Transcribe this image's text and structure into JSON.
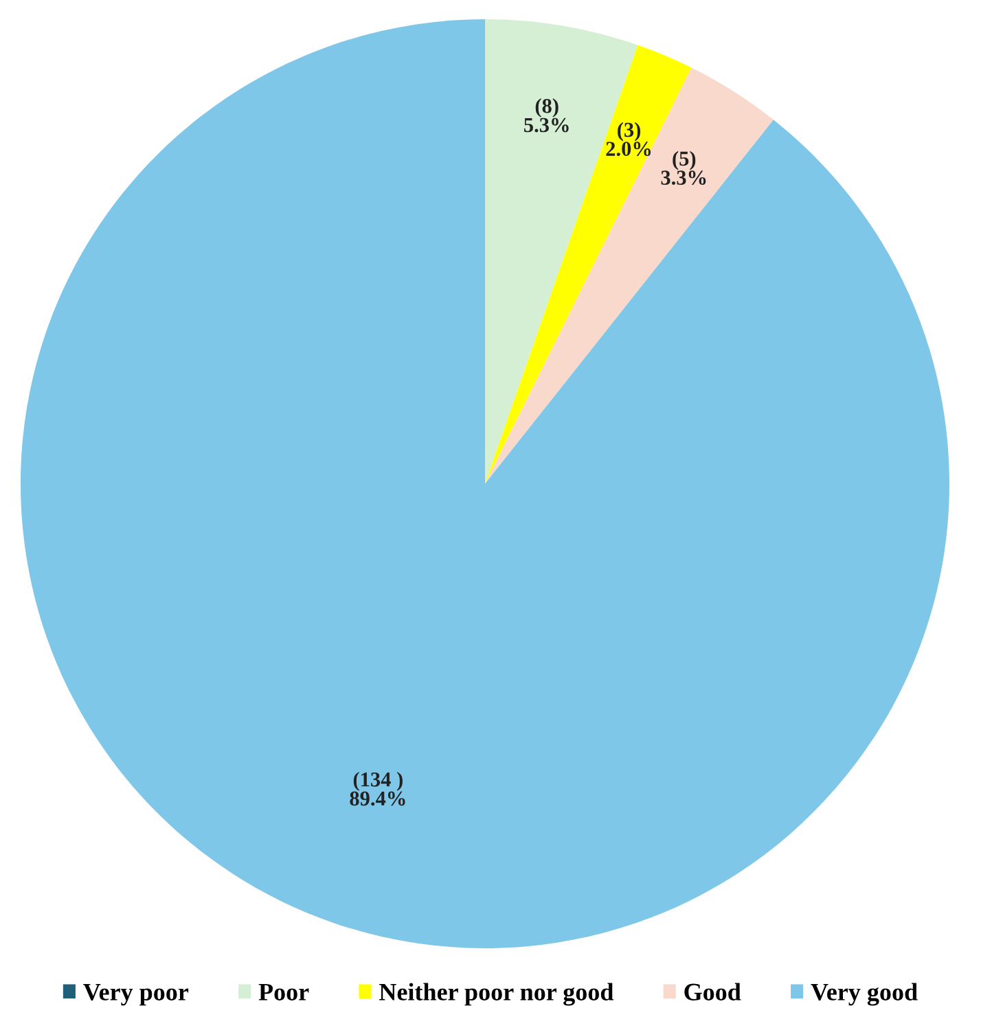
{
  "chart_data": {
    "type": "pie",
    "categories": [
      "Very poor",
      "Poor",
      "Neither poor nor good",
      "Good",
      "Very good"
    ],
    "values": [
      0,
      8,
      3,
      5,
      134
    ],
    "colors": [
      "#1f5f7a",
      "#d5efd5",
      "#ffff00",
      "#f8d9cc",
      "#7fc7e8"
    ],
    "value_labels": [
      null,
      "(8)\n5.3%",
      "(3)\n2.0%",
      "(5)\n3.3%",
      "(134 )\n89.4%"
    ],
    "legend": "bottom"
  }
}
